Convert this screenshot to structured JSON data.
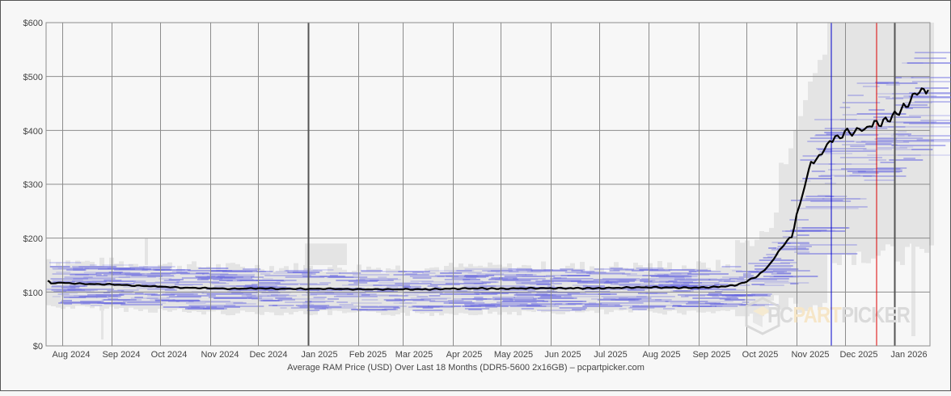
{
  "chart_data": {
    "type": "line",
    "title": "Average RAM Price (USD) Over Last 18 Months (DDR5-5600 2x16GB) – pcpartpicker.com",
    "xlabel": "Average RAM Price (USD) Over Last 18 Months (DDR5-5600 2x16GB) – pcpartpicker.com",
    "ylabel": "",
    "ylim": [
      0,
      600
    ],
    "y_ticks": [
      "$0",
      "$100",
      "$200",
      "$300",
      "$400",
      "$500",
      "$600"
    ],
    "x_ticks": [
      "Aug 2024",
      "Sep 2024",
      "Oct 2024",
      "Nov 2024",
      "Dec 2024",
      "Jan 2025",
      "Feb 2025",
      "Mar 2025",
      "Apr 2025",
      "May 2025",
      "Jun 2025",
      "Jul 2025",
      "Aug 2025",
      "Sep 2025",
      "Oct 2025",
      "Nov 2025",
      "Dec 2025",
      "Jan 2026"
    ],
    "grid": true,
    "legend": "none",
    "series": [
      {
        "name": "Average price",
        "color": "#000000",
        "x": [
          "2024-07-23",
          "2024-07-25",
          "2024-08-01",
          "2024-08-15",
          "2024-09-01",
          "2024-09-15",
          "2024-10-01",
          "2024-10-15",
          "2024-11-01",
          "2024-11-15",
          "2024-12-01",
          "2024-12-15",
          "2025-01-01",
          "2025-01-15",
          "2025-02-01",
          "2025-02-15",
          "2025-03-01",
          "2025-03-15",
          "2025-04-01",
          "2025-04-15",
          "2025-05-01",
          "2025-05-15",
          "2025-06-01",
          "2025-06-15",
          "2025-07-01",
          "2025-07-15",
          "2025-08-01",
          "2025-08-15",
          "2025-09-01",
          "2025-09-15",
          "2025-09-25",
          "2025-10-01",
          "2025-10-08",
          "2025-10-15",
          "2025-10-22",
          "2025-10-29",
          "2025-11-01",
          "2025-11-03",
          "2025-11-06",
          "2025-11-10",
          "2025-11-15",
          "2025-11-20",
          "2025-11-25",
          "2025-12-01",
          "2025-12-10",
          "2025-12-18",
          "2025-12-25",
          "2026-01-01",
          "2026-01-08",
          "2026-01-15",
          "2026-01-22"
        ],
        "values": [
          122,
          116,
          117,
          115,
          114,
          112,
          110,
          108,
          107,
          106,
          107,
          106,
          106,
          106,
          105,
          105,
          105,
          105,
          106,
          107,
          106,
          107,
          107,
          107,
          107,
          108,
          109,
          108,
          108,
          110,
          113,
          120,
          130,
          150,
          180,
          205,
          240,
          255,
          300,
          340,
          355,
          370,
          385,
          395,
          400,
          410,
          415,
          430,
          445,
          470,
          475
        ]
      }
    ],
    "annotations": [
      {
        "type": "vline",
        "color": "#0000cc",
        "position": "2025-11-08"
      },
      {
        "type": "vline",
        "color": "#dd0000",
        "position": "2025-12-27"
      },
      {
        "type": "vline",
        "color": "#555555",
        "position": "2025-01-01"
      },
      {
        "type": "vline",
        "color": "#555555",
        "position": "2026-01-01"
      }
    ],
    "background_ranges": "light gray min–max price bands with blue horizontal individual listing price segments"
  },
  "axis": {
    "y_labels": [
      "$600",
      "$500",
      "$400",
      "$300",
      "$200",
      "$100",
      "$0"
    ],
    "x_labels": [
      "Aug 2024",
      "Sep 2024",
      "Oct 2024",
      "Nov 2024",
      "Dec 2024",
      "Jan 2025",
      "Feb 2025",
      "Mar 2025",
      "Apr 2025",
      "May 2025",
      "Jun 2025",
      "Jul 2025",
      "Aug 2025",
      "Sep 2025",
      "Oct 2025",
      "Nov 2025",
      "Dec 2025",
      "Jan 2026"
    ]
  },
  "caption": "Average RAM Price (USD) Over Last 18 Months (DDR5-5600 2x16GB) – pcpartpicker.com",
  "watermark": {
    "part1": "PC",
    "part2": "PART",
    "part3": "PICKER"
  },
  "colors": {
    "avg_line": "#000000",
    "listing_segments": "#6b6be0",
    "range_band": "#e4e4e4",
    "grid": "#8c8c8c",
    "blue_marker": "#0000cc",
    "red_marker": "#dd0000",
    "watermark_gray": "#dadada",
    "watermark_orange": "#f6e6c8"
  }
}
